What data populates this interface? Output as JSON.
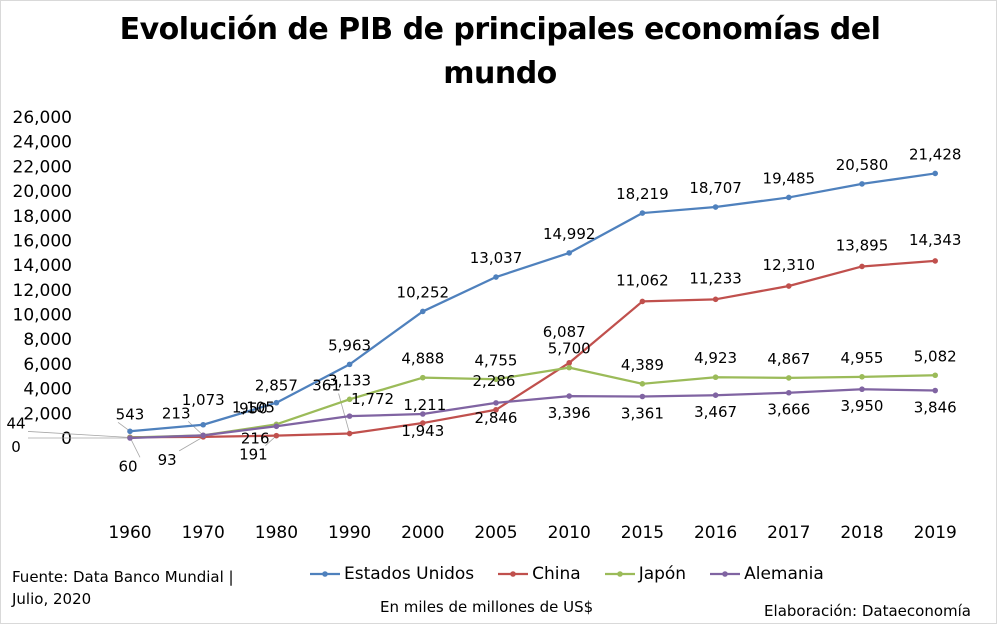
{
  "chart_data": {
    "type": "line",
    "title": "Evolución de PIB de principales economías del mundo",
    "categories": [
      "1960",
      "1970",
      "1980",
      "1990",
      "2000",
      "2005",
      "2010",
      "2015",
      "2016",
      "2017",
      "2018",
      "2019"
    ],
    "ylim": [
      0,
      26000
    ],
    "y_ticks": [
      "0",
      "2,000",
      "4,000",
      "6,000",
      "8,000",
      "10,000",
      "12,000",
      "14,000",
      "16,000",
      "18,000",
      "20,000",
      "22,000",
      "24,000",
      "26,000"
    ],
    "grid": false,
    "legend_position": "bottom",
    "series": [
      {
        "name": "Estados Unidos",
        "color": "#4f81bd",
        "values": [
          543,
          1073,
          2857,
          5963,
          10252,
          13037,
          14992,
          18219,
          18707,
          19485,
          20580,
          21428
        ],
        "labels": [
          "543",
          "1,073",
          "2,857",
          "5,963",
          "10,252",
          "13,037",
          "14,992",
          "18,219",
          "18,707",
          "19,485",
          "20,580",
          "21,428"
        ]
      },
      {
        "name": "China",
        "color": "#c0504d",
        "values": [
          60,
          93,
          191,
          361,
          1211,
          2286,
          6087,
          11062,
          11233,
          12310,
          13895,
          14343
        ],
        "labels": [
          "60",
          "93",
          "191",
          "361",
          "1,211",
          "2,286",
          "6,087",
          "11,062",
          "11,233",
          "12,310",
          "13,895",
          "14,343"
        ]
      },
      {
        "name": "Japón",
        "color": "#9bbb59",
        "values": [
          44,
          213,
          1105,
          3133,
          4888,
          4755,
          5700,
          4389,
          4923,
          4867,
          4955,
          5082
        ],
        "labels": [
          "44",
          "213",
          "1,105",
          "3,133",
          "4,888",
          "4,755",
          "5,700",
          "4,389",
          "4,923",
          "4,867",
          "4,955",
          "5,082"
        ]
      },
      {
        "name": "Alemania",
        "color": "#8064a2",
        "values": [
          0,
          216,
          950,
          1772,
          1943,
          2846,
          3396,
          3361,
          3467,
          3666,
          3950,
          3846
        ],
        "labels": [
          "0",
          "216",
          "950",
          "1,772",
          "1,943",
          "2,846",
          "3,396",
          "3,361",
          "3,467",
          "3,666",
          "3,950",
          "3,846"
        ]
      }
    ]
  },
  "footer": {
    "source": "Fuente:  Data Banco Mundial | Julio, 2020",
    "unit": "En miles de millones de US$",
    "credit": "Elaboración: Dataeconomía"
  }
}
